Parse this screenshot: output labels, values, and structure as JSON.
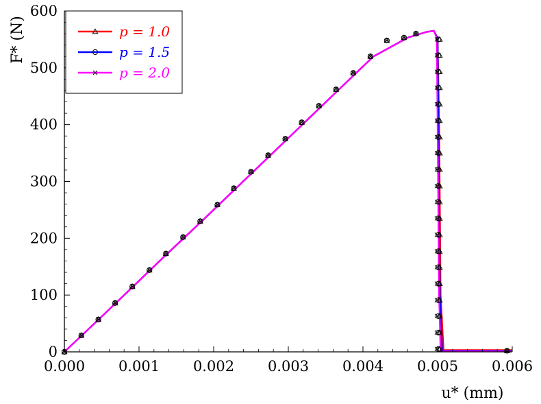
{
  "chart_data": {
    "type": "line",
    "title": "",
    "xlabel": "u* (mm)",
    "ylabel": "F* (N)",
    "xlim": [
      0,
      0.006
    ],
    "ylim": [
      0,
      600
    ],
    "x_ticks": [
      "0.000",
      "0.001",
      "0.002",
      "0.003",
      "0.004",
      "0.005",
      "0.006"
    ],
    "y_ticks": [
      "0",
      "100",
      "200",
      "300",
      "400",
      "500",
      "600"
    ],
    "grid": false,
    "legend": {
      "placement": "top-left",
      "entries": [
        "p = 1.0",
        "p = 1.5",
        "p = 2.0"
      ]
    },
    "series": [
      {
        "name": "p = 1.0",
        "color": "#ff0000",
        "marker": "triangle",
        "x": [
          0,
          0.00046,
          0.00092,
          0.00138,
          0.00184,
          0.0023,
          0.00276,
          0.00322,
          0.00368,
          0.00414,
          0.0046,
          0.00485,
          0.00495,
          0.005,
          0.00502,
          0.00504,
          0.00508,
          0.006
        ],
        "y": [
          0,
          57,
          115,
          173,
          230,
          288,
          346,
          404,
          462,
          520,
          553,
          563,
          565,
          552,
          400,
          100,
          3,
          3
        ]
      },
      {
        "name": "p = 1.5",
        "color": "#0000ff",
        "marker": "circle",
        "x": [
          0,
          0.00046,
          0.00092,
          0.00138,
          0.00184,
          0.0023,
          0.00276,
          0.00322,
          0.00368,
          0.00414,
          0.0046,
          0.00485,
          0.00495,
          0.005,
          0.00501,
          0.00503,
          0.00506,
          0.006
        ],
        "y": [
          0,
          57,
          115,
          173,
          230,
          288,
          346,
          404,
          462,
          520,
          553,
          563,
          565,
          552,
          400,
          100,
          2,
          2
        ]
      },
      {
        "name": "p = 2.0",
        "color": "#ff00ff",
        "marker": "x",
        "x": [
          0,
          0.00046,
          0.00092,
          0.00138,
          0.00184,
          0.0023,
          0.00276,
          0.00322,
          0.00368,
          0.00414,
          0.0046,
          0.00485,
          0.00495,
          0.00499,
          0.005,
          0.00502,
          0.00504,
          0.006
        ],
        "y": [
          0,
          57,
          115,
          173,
          230,
          288,
          346,
          404,
          462,
          520,
          553,
          563,
          565,
          552,
          400,
          100,
          1,
          1
        ]
      }
    ],
    "marker_series": {
      "x": [
        0,
        0.000227,
        0.000455,
        0.00068,
        0.00091,
        0.00114,
        0.00136,
        0.00159,
        0.00182,
        0.00205,
        0.00227,
        0.0025,
        0.00273,
        0.00296,
        0.00318,
        0.00341,
        0.00364,
        0.00387,
        0.0041,
        0.00432,
        0.00455,
        0.00471
      ],
      "y": [
        0,
        29,
        57,
        86,
        115,
        144,
        173,
        202,
        230,
        259,
        288,
        317,
        346,
        375,
        404,
        433,
        462,
        491,
        520,
        548,
        553,
        560
      ]
    },
    "drop_markers_y": [
      550,
      522,
      493,
      465,
      436,
      407,
      378,
      350,
      321,
      292,
      264,
      235,
      206,
      177,
      149,
      120,
      91,
      63,
      34,
      5
    ],
    "end_point": [
      0.00593,
      2
    ]
  }
}
